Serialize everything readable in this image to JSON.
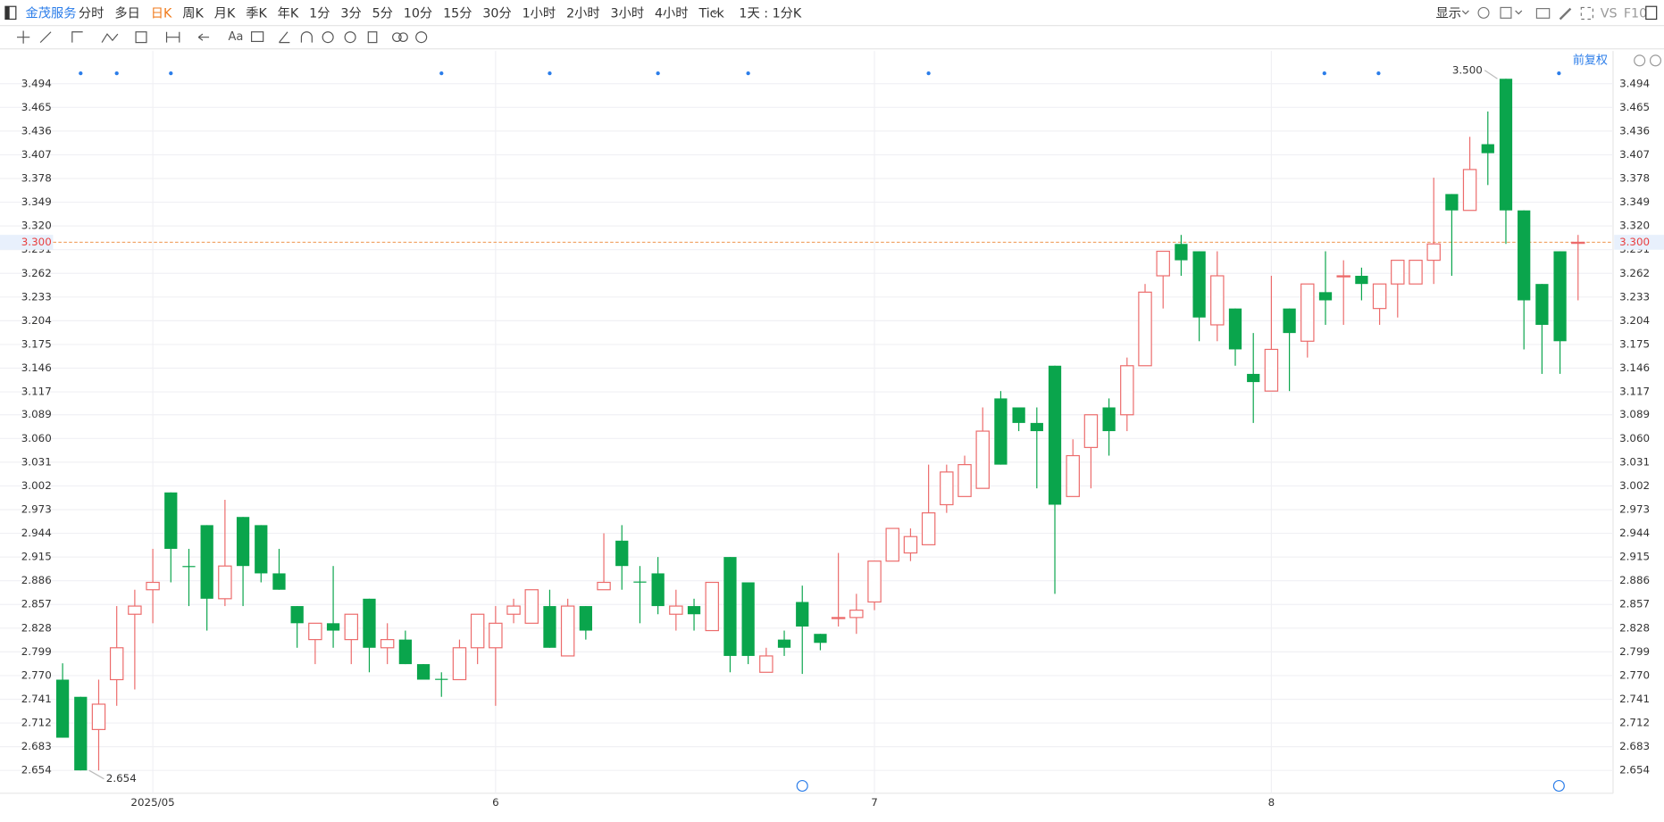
{
  "toolbar": {
    "stock": "金茂服务",
    "periods": [
      "分时",
      "多日",
      "日K",
      "周K",
      "月K",
      "季K",
      "年K",
      "1分",
      "3分",
      "5分",
      "10分",
      "15分",
      "30分",
      "1小时",
      "2小时",
      "3小时",
      "4小时",
      "Tick"
    ],
    "active_period": 2,
    "interval": "1天 : 1分K",
    "display": "显示",
    "vs": "VS",
    "f10": "F10"
  },
  "chart_data": {
    "type": "candlestick",
    "adjust_label": "前复权",
    "open": [
      2.765,
      2.744,
      2.704,
      2.765,
      2.845,
      2.875,
      2.994,
      2.904,
      2.954,
      2.864,
      2.964,
      2.954,
      2.895,
      2.855,
      2.814,
      2.834,
      2.814,
      2.864,
      2.804,
      2.814,
      2.784,
      2.766,
      2.765,
      2.804,
      2.804,
      2.845,
      2.834,
      2.855,
      2.794,
      2.855,
      2.875,
      2.935,
      2.885,
      2.895,
      2.845,
      2.855,
      2.825,
      2.915,
      2.884,
      2.774,
      2.814,
      2.86,
      2.821,
      2.84,
      2.841,
      2.86,
      2.91,
      2.92,
      2.93,
      2.979,
      2.989,
      2.999,
      3.109,
      3.098,
      3.079,
      3.149,
      2.989,
      3.049,
      3.098,
      3.089,
      3.149,
      3.259,
      3.298,
      3.289,
      3.199,
      3.219,
      3.139,
      3.118,
      3.219,
      3.179,
      3.239,
      3.258,
      3.259,
      3.219,
      3.249,
      3.249,
      3.278,
      3.359,
      3.339,
      3.42,
      3.5,
      3.339,
      3.249,
      3.289,
      3.299
    ],
    "high": [
      2.785,
      2.744,
      2.765,
      2.855,
      2.875,
      2.925,
      2.994,
      2.925,
      2.954,
      2.985,
      2.964,
      2.954,
      2.925,
      2.855,
      2.834,
      2.904,
      2.845,
      2.864,
      2.834,
      2.825,
      2.784,
      2.774,
      2.814,
      2.845,
      2.855,
      2.864,
      2.875,
      2.875,
      2.864,
      2.855,
      2.944,
      2.954,
      2.904,
      2.915,
      2.875,
      2.864,
      2.884,
      2.915,
      2.884,
      2.804,
      2.825,
      2.88,
      2.821,
      2.92,
      2.87,
      2.91,
      2.95,
      2.95,
      3.028,
      3.028,
      3.039,
      3.098,
      3.118,
      3.098,
      3.098,
      3.149,
      3.059,
      3.089,
      3.109,
      3.159,
      3.249,
      3.289,
      3.309,
      3.289,
      3.289,
      3.219,
      3.189,
      3.259,
      3.219,
      3.249,
      3.289,
      3.278,
      3.269,
      3.249,
      3.278,
      3.278,
      3.379,
      3.359,
      3.429,
      3.46,
      3.5,
      3.339,
      3.249,
      3.289,
      3.309
    ],
    "low": [
      2.694,
      2.654,
      2.654,
      2.733,
      2.753,
      2.834,
      2.884,
      2.855,
      2.825,
      2.855,
      2.855,
      2.884,
      2.875,
      2.804,
      2.784,
      2.804,
      2.784,
      2.774,
      2.784,
      2.784,
      2.765,
      2.744,
      2.765,
      2.784,
      2.733,
      2.834,
      2.834,
      2.804,
      2.794,
      2.814,
      2.875,
      2.875,
      2.834,
      2.845,
      2.825,
      2.825,
      2.825,
      2.774,
      2.784,
      2.774,
      2.794,
      2.772,
      2.801,
      2.83,
      2.821,
      2.85,
      2.91,
      2.91,
      2.93,
      2.969,
      2.989,
      2.999,
      3.028,
      3.069,
      2.999,
      2.87,
      2.989,
      2.999,
      3.039,
      3.069,
      3.149,
      3.219,
      3.259,
      3.179,
      3.179,
      3.149,
      3.079,
      3.118,
      3.118,
      3.159,
      3.199,
      3.199,
      3.229,
      3.199,
      3.208,
      3.249,
      3.249,
      3.259,
      3.339,
      3.37,
      3.298,
      3.169,
      3.139,
      3.139,
      3.229
    ],
    "close": [
      2.694,
      2.654,
      2.735,
      2.804,
      2.855,
      2.884,
      2.925,
      2.903,
      2.864,
      2.904,
      2.904,
      2.895,
      2.875,
      2.834,
      2.834,
      2.825,
      2.845,
      2.804,
      2.814,
      2.784,
      2.765,
      2.765,
      2.804,
      2.845,
      2.834,
      2.855,
      2.875,
      2.804,
      2.855,
      2.825,
      2.884,
      2.904,
      2.884,
      2.855,
      2.855,
      2.845,
      2.884,
      2.794,
      2.794,
      2.794,
      2.804,
      2.83,
      2.81,
      2.841,
      2.85,
      2.91,
      2.95,
      2.94,
      2.969,
      3.019,
      3.028,
      3.069,
      3.028,
      3.079,
      3.069,
      2.979,
      3.039,
      3.089,
      3.069,
      3.149,
      3.239,
      3.289,
      3.278,
      3.208,
      3.259,
      3.169,
      3.129,
      3.169,
      3.189,
      3.249,
      3.229,
      3.259,
      3.249,
      3.249,
      3.278,
      3.278,
      3.298,
      3.339,
      3.389,
      3.409,
      3.339,
      3.229,
      3.199,
      3.179,
      3.3
    ],
    "up_color": "#ec6b6b",
    "down_color": "#0aa54c",
    "ylim": [
      2.626,
      3.534
    ],
    "yticks": [
      3.494,
      3.465,
      3.436,
      {
        "value": 3.407,
        "label": "3.407"
      },
      3.378,
      3.349,
      {
        "value": 3.32,
        "label": "3.320"
      },
      3.291,
      3.262,
      3.233,
      3.204,
      3.175,
      3.146,
      3.117,
      3.089,
      {
        "value": 3.06,
        "label": "3.060"
      },
      3.031,
      3.002,
      2.973,
      2.944,
      2.915,
      2.886,
      2.857,
      2.828,
      2.799,
      {
        "value": 2.77,
        "label": "2.770"
      },
      2.741,
      2.712,
      2.683,
      2.654
    ],
    "xlim": [
      -3.47,
      85.94
    ],
    "xticks": [
      {
        "value": 5,
        "label": "2025/05"
      },
      {
        "value": 24,
        "label": "6"
      },
      {
        "value": 45,
        "label": "7"
      },
      {
        "value": 67,
        "label": "8"
      }
    ],
    "last_price": {
      "value": 3.3,
      "label": "3.300"
    },
    "annotations": [
      {
        "text": "3.500",
        "value": 3.5,
        "at": "high"
      },
      {
        "text": "2.654",
        "value": 2.654,
        "at": "low"
      }
    ],
    "grid": true
  }
}
